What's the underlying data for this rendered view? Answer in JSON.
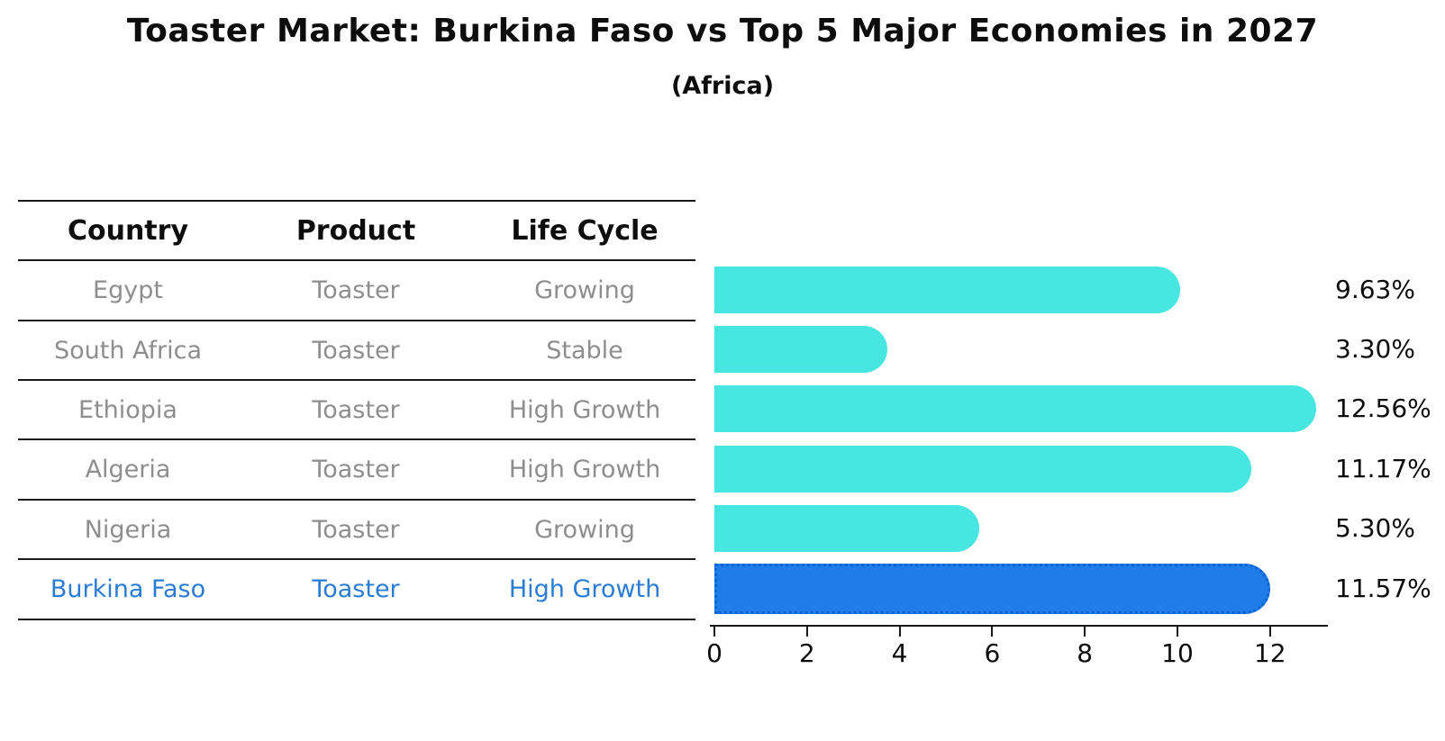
{
  "title": "Toaster Market: Burkina Faso vs Top 5 Major Economies in 2027",
  "subtitle": "(Africa)",
  "table": {
    "headers": [
      "Country",
      "Product",
      "Life Cycle"
    ],
    "rows": [
      {
        "country": "Egypt",
        "product": "Toaster",
        "life_cycle": "Growing",
        "highlight": false
      },
      {
        "country": "South Africa",
        "product": "Toaster",
        "life_cycle": "Stable",
        "highlight": false
      },
      {
        "country": "Ethiopia",
        "product": "Toaster",
        "life_cycle": "High Growth",
        "highlight": false
      },
      {
        "country": "Algeria",
        "product": "Toaster",
        "life_cycle": "High Growth",
        "highlight": false
      },
      {
        "country": "Nigeria",
        "product": "Toaster",
        "life_cycle": "Growing",
        "highlight": false
      },
      {
        "country": "Burkina Faso",
        "product": "Toaster",
        "life_cycle": "High Growth",
        "highlight": true
      }
    ]
  },
  "chart_data": {
    "type": "bar",
    "orientation": "horizontal",
    "title": "Toaster Market: Burkina Faso vs Top 5 Major Economies in 2027 (Africa)",
    "categories": [
      "Egypt",
      "South Africa",
      "Ethiopia",
      "Algeria",
      "Nigeria",
      "Burkina Faso"
    ],
    "values": [
      9.63,
      3.3,
      12.56,
      11.17,
      5.3,
      11.57
    ],
    "value_labels": [
      "9.63%",
      "3.30%",
      "12.56%",
      "11.17%",
      "5.30%",
      "11.57%"
    ],
    "x_ticks": [
      "0",
      "2",
      "4",
      "6",
      "8",
      "10",
      "12"
    ],
    "xlim": [
      0,
      13.3
    ],
    "grid": false,
    "legend": false,
    "highlight_index": 5
  },
  "colors": {
    "bar": "#47E6E1",
    "highlight_bar": "#1E7DE9",
    "highlight_border": "#0D63D6",
    "highlight_text": "#2B7CD3",
    "table_text": "#8E8E8E",
    "heading_text": "#0D0D0D",
    "line": "#1A1A1A"
  }
}
